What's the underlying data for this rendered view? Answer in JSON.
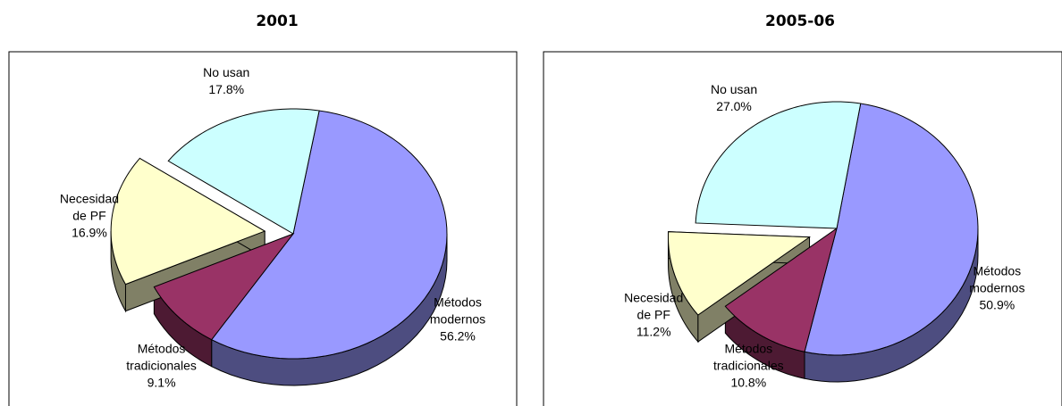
{
  "chart_data": [
    {
      "type": "pie",
      "title": "2001",
      "categories": [
        "Métodos modernos",
        "Métodos tradicionales",
        "Necesidad de PF",
        "No usan"
      ],
      "values": [
        56.2,
        9.1,
        16.9,
        17.8
      ],
      "value_labels": [
        "56.2%",
        "9.1%",
        "16.9%",
        "17.8%"
      ],
      "colors": [
        "#9999ff",
        "#993366",
        "#ffffcc",
        "#ccffff"
      ],
      "explode": [
        false,
        false,
        true,
        false
      ]
    },
    {
      "type": "pie",
      "title": "2005-06",
      "categories": [
        "Métodos modernos",
        "Métodos tradicionales",
        "Necesidad de PF",
        "No usan"
      ],
      "values": [
        50.9,
        10.8,
        11.2,
        27.0
      ],
      "value_labels": [
        "50.9%",
        "10.8%",
        "11.2%",
        "27.0%"
      ],
      "colors": [
        "#9999ff",
        "#993366",
        "#ffffcc",
        "#ccffff"
      ],
      "explode": [
        false,
        false,
        true,
        false
      ]
    }
  ]
}
